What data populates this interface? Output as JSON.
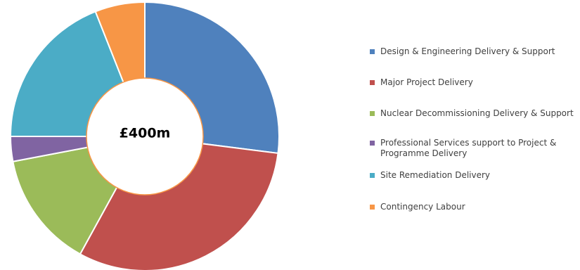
{
  "chart_data": {
    "type": "pie",
    "style": "donut",
    "center_label": "£400m",
    "slices": [
      {
        "label": "Design & Engineering Delivery & Support",
        "value": 27,
        "color": "#4F81BD"
      },
      {
        "label": "Major Project Delivery",
        "value": 31,
        "color": "#C0504D"
      },
      {
        "label": "Nuclear Decommissioning Delivery & Support",
        "value": 14,
        "color": "#9BBB59"
      },
      {
        "label": "Professional Services support to Project & Programme Delivery",
        "value": 3,
        "color": "#8064A2"
      },
      {
        "label": "Site Remediation Delivery",
        "value": 19,
        "color": "#4BACC6"
      },
      {
        "label": "Contingency Labour",
        "value": 6,
        "color": "#F79646"
      }
    ],
    "legend_position": "right"
  }
}
